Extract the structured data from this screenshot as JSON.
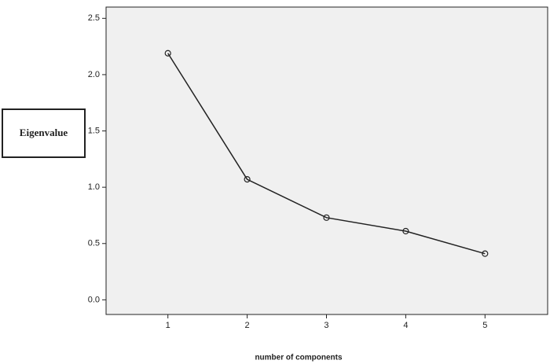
{
  "chart_data": {
    "type": "line",
    "x_label": "number of components",
    "y_label": "Eigenvalue",
    "x": [
      1,
      2,
      3,
      4,
      5
    ],
    "series": [
      {
        "color": "#222222",
        "values": [
          2.19,
          1.07,
          0.73,
          0.61,
          0.41
        ]
      }
    ],
    "xlim": [
      0.22,
      5.79
    ],
    "xticks": [
      1,
      2,
      3,
      4,
      5
    ],
    "ylim": [
      -0.13,
      2.6
    ],
    "yticks": [
      {
        "value": 0,
        "label": "0.0"
      },
      {
        "value": 0.5,
        "label": "0.5"
      },
      {
        "value": 1,
        "label": "1.0"
      },
      {
        "value": 1.5,
        "label": "1.5"
      },
      {
        "value": 2,
        "label": "2.0"
      },
      {
        "value": 2.5,
        "label": "2.5"
      }
    ],
    "plot_background": "#f0f0f0"
  }
}
